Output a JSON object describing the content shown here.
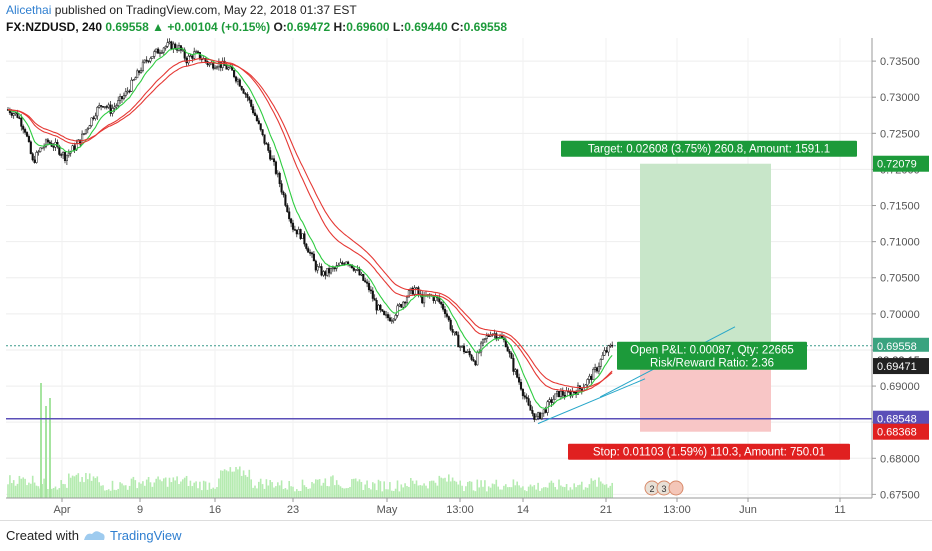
{
  "header": {
    "author": "Alicethai",
    "published_text": "published on TradingView.com, May 22, 2018 01:37 EST",
    "symbol": "FX:NZDUSD, 240",
    "last": "0.69558",
    "change": "+0.00104 (+0.15%)",
    "o_label": "O:",
    "o_value": "0.69472",
    "h_label": "H:",
    "h_value": "0.69600",
    "l_label": "L:",
    "l_value": "0.69440",
    "c_label": "C:",
    "c_value": "0.69558"
  },
  "footer": {
    "created_with": "Created with",
    "brand": "TradingView"
  },
  "colors": {
    "up": "#ffffff",
    "down": "#111111",
    "ema_fast": "#2ecc40",
    "ema_slow": "#e53935",
    "profit_zone": "#c8e6c9",
    "loss_zone": "#f8c6c6",
    "target_label": "#1c9a3a",
    "stop_label": "#e02020",
    "support_line": "#5b4fb8",
    "trendline": "#26a6c9"
  },
  "chart_data": {
    "type": "candlestick",
    "y_ticks": [
      "0.73500",
      "0.73000",
      "0.72500",
      "0.72000",
      "0.71500",
      "0.71000",
      "0.70500",
      "0.70000",
      "0.69500",
      "0.69000",
      "0.68500",
      "0.68000",
      "0.67500"
    ],
    "x_ticks": [
      "Apr",
      "9",
      "16",
      "23",
      "May",
      "13:00",
      "14",
      "21",
      "13:00",
      "Jun",
      "11"
    ],
    "ylim": [
      0.6745,
      0.7382
    ],
    "price_labels": {
      "target": "0.72079",
      "current": "0.69558",
      "countdown": "02:22:15",
      "ema": "0.69471",
      "support": "0.68548",
      "stop": "0.68368"
    },
    "levels": {
      "target": 0.72079,
      "current": 0.69558,
      "ema": 0.69471,
      "support": 0.68548,
      "stop": 0.68368,
      "entry": 0.69471
    },
    "annotations": {
      "target": "Target: 0.02608 (3.75%) 260.8, Amount: 1591.1",
      "open_pnl": "Open P&L: 0.00087, Qty: 22665",
      "risk_reward": "Risk/Reward Ratio: 2.36",
      "stop": "Stop: 0.01103 (1.59%) 110.3, Amount: 750.01"
    },
    "close_path": [
      [
        0,
        0.7283
      ],
      [
        5,
        0.7275
      ],
      [
        9,
        0.7255
      ],
      [
        13,
        0.721
      ],
      [
        17,
        0.7228
      ],
      [
        21,
        0.7238
      ],
      [
        25,
        0.7232
      ],
      [
        30,
        0.7218
      ],
      [
        34,
        0.7228
      ],
      [
        38,
        0.724
      ],
      [
        42,
        0.726
      ],
      [
        46,
        0.728
      ],
      [
        50,
        0.7292
      ],
      [
        54,
        0.7282
      ],
      [
        58,
        0.7292
      ],
      [
        62,
        0.7305
      ],
      [
        66,
        0.7322
      ],
      [
        70,
        0.734
      ],
      [
        74,
        0.7355
      ],
      [
        78,
        0.7362
      ],
      [
        82,
        0.737
      ],
      [
        86,
        0.7372
      ],
      [
        90,
        0.7368
      ],
      [
        94,
        0.7352
      ],
      [
        98,
        0.736
      ],
      [
        102,
        0.7355
      ],
      [
        106,
        0.7345
      ],
      [
        110,
        0.7347
      ],
      [
        114,
        0.7343
      ],
      [
        118,
        0.7335
      ],
      [
        122,
        0.732
      ],
      [
        126,
        0.73
      ],
      [
        130,
        0.7275
      ],
      [
        134,
        0.7245
      ],
      [
        138,
        0.722
      ],
      [
        142,
        0.719
      ],
      [
        146,
        0.7155
      ],
      [
        150,
        0.712
      ],
      [
        154,
        0.711
      ],
      [
        158,
        0.709
      ],
      [
        162,
        0.7065
      ],
      [
        166,
        0.7055
      ],
      [
        170,
        0.706
      ],
      [
        174,
        0.7065
      ],
      [
        178,
        0.7075
      ],
      [
        182,
        0.7065
      ],
      [
        186,
        0.705
      ],
      [
        190,
        0.7035
      ],
      [
        194,
        0.701
      ],
      [
        198,
        0.6995
      ],
      [
        202,
        0.6995
      ],
      [
        206,
        0.701
      ],
      [
        210,
        0.7025
      ],
      [
        214,
        0.7035
      ],
      [
        218,
        0.702
      ],
      [
        222,
        0.7025
      ],
      [
        226,
        0.702
      ],
      [
        230,
        0.7005
      ],
      [
        234,
        0.6975
      ],
      [
        238,
        0.6955
      ],
      [
        242,
        0.6945
      ],
      [
        246,
        0.6935
      ],
      [
        250,
        0.696
      ],
      [
        254,
        0.6975
      ],
      [
        258,
        0.697
      ],
      [
        262,
        0.696
      ],
      [
        266,
        0.6925
      ],
      [
        270,
        0.69
      ],
      [
        274,
        0.687
      ],
      [
        278,
        0.6855
      ],
      [
        282,
        0.6865
      ],
      [
        286,
        0.688
      ],
      [
        290,
        0.689
      ],
      [
        294,
        0.6888
      ],
      [
        298,
        0.6893
      ],
      [
        302,
        0.6898
      ],
      [
        306,
        0.691
      ],
      [
        310,
        0.6925
      ],
      [
        314,
        0.6946
      ],
      [
        318,
        0.6956
      ]
    ],
    "volume_profile": [
      0.55,
      0.35,
      0.6,
      0.3,
      0.45,
      0.5,
      0.35,
      0.9,
      0.4,
      0.3,
      0.5,
      0.35,
      0.3,
      0.4,
      0.55,
      0.3,
      0.35,
      0.25,
      0.3,
      0.4
    ]
  }
}
